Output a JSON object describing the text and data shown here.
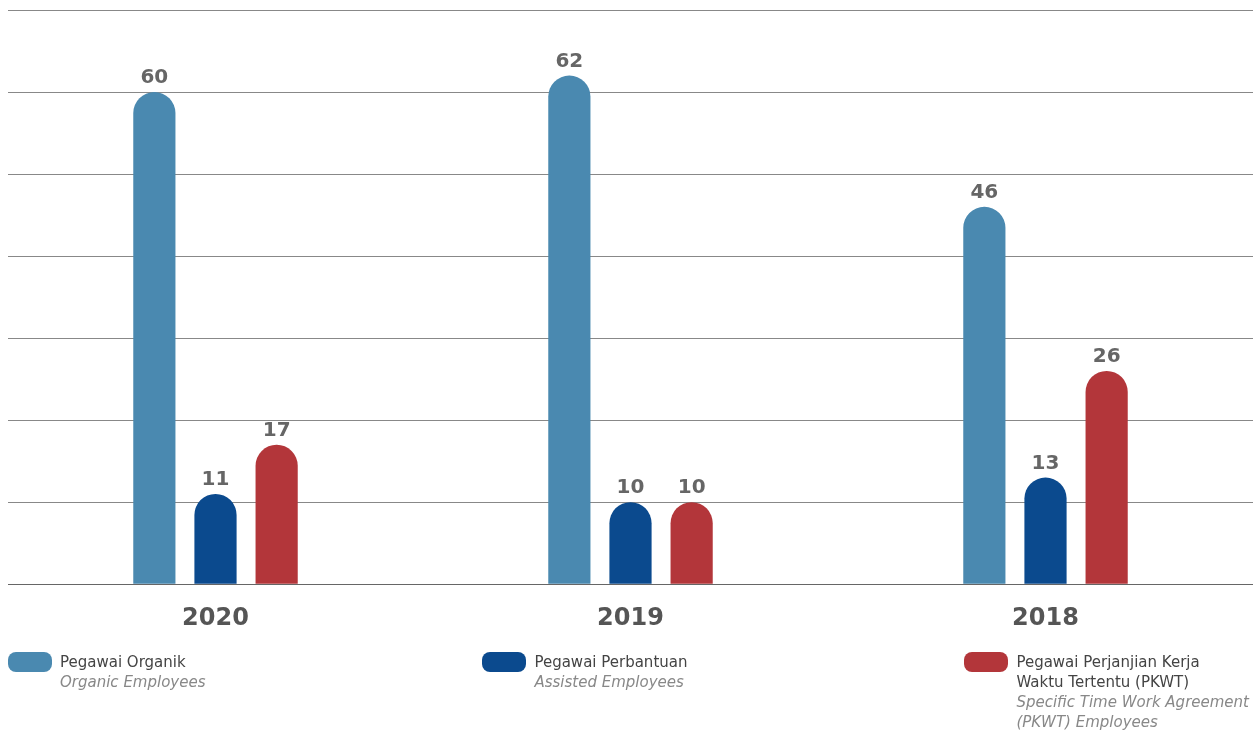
{
  "chart_data": {
    "type": "bar",
    "categories": [
      "2020",
      "2019",
      "2018"
    ],
    "series": [
      {
        "name": "Pegawai Organik\nOrganic Employees",
        "color": "#4a89b0",
        "values": [
          60,
          62,
          46
        ]
      },
      {
        "name": "Pegawai Perbantuan\nAssisted Employees",
        "color": "#0b4a8e",
        "values": [
          11,
          10,
          13
        ]
      },
      {
        "name": "Pegawai Perjanjian Kerja\nWaktu Tertentu (PKWT)\nSpecific Time Work Agreement\n(PKWT) Employees",
        "color": "#b3363a",
        "values": [
          17,
          10,
          26
        ]
      }
    ],
    "ylim": [
      0,
      70
    ],
    "yticks": [
      {
        "value": 0,
        "label": null
      },
      {
        "value": 10,
        "label": null
      },
      {
        "value": 20,
        "label": null
      },
      {
        "value": 30,
        "label": null
      },
      {
        "value": 40,
        "label": null
      },
      {
        "value": 50,
        "label": null
      },
      {
        "value": 60,
        "label": null
      },
      {
        "value": 70,
        "label": null
      }
    ],
    "tick_labels": "x",
    "grid": "y",
    "data_labels": true,
    "legend": "bottom"
  }
}
